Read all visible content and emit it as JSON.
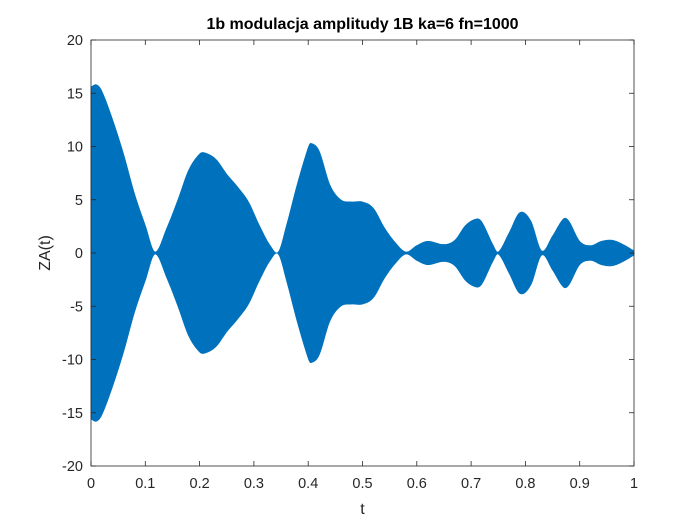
{
  "figure": {
    "background": "#ffffff",
    "axes_color": "#262626"
  },
  "chart_data": {
    "type": "area",
    "title": "1b modulacja amplitudy 1B ka=6 fn=1000",
    "xlabel": "t",
    "ylabel": "ZA(t)",
    "xlim": [
      0,
      1
    ],
    "ylim": [
      -20,
      20
    ],
    "xticks": [
      0,
      0.1,
      0.2,
      0.3,
      0.4,
      0.5,
      0.6,
      0.7,
      0.8,
      0.9,
      1
    ],
    "xtick_labels": [
      "0",
      "0.1",
      "0.2",
      "0.3",
      "0.4",
      "0.5",
      "0.6",
      "0.7",
      "0.8",
      "0.9",
      "1"
    ],
    "yticks": [
      -20,
      -15,
      -10,
      -5,
      0,
      5,
      10,
      15,
      20
    ],
    "ytick_labels": [
      "-20",
      "-15",
      "-10",
      "-5",
      "0",
      "5",
      "10",
      "15",
      "20"
    ],
    "grid": false,
    "box": true,
    "series": [
      {
        "color": "#0072BD",
        "style": "amplitude-modulated signal, symmetric envelope ±A(t)",
        "envelope_t": [
          0,
          0.01,
          0.02,
          0.04,
          0.06,
          0.08,
          0.1,
          0.118,
          0.14,
          0.16,
          0.18,
          0.2,
          0.21,
          0.23,
          0.25,
          0.27,
          0.29,
          0.31,
          0.33,
          0.345,
          0.36,
          0.38,
          0.4,
          0.405,
          0.42,
          0.44,
          0.46,
          0.48,
          0.5,
          0.52,
          0.54,
          0.56,
          0.58,
          0.6,
          0.62,
          0.65,
          0.67,
          0.69,
          0.71,
          0.72,
          0.74,
          0.75,
          0.77,
          0.79,
          0.81,
          0.83,
          0.85,
          0.87,
          0.88,
          0.9,
          0.92,
          0.94,
          0.96,
          0.98,
          1
        ],
        "envelope_a": [
          15.6,
          15.8,
          15.2,
          12.5,
          9.3,
          5.6,
          2.6,
          0.1,
          2.4,
          5.0,
          7.8,
          9.3,
          9.4,
          8.8,
          7.4,
          6.2,
          4.8,
          2.6,
          0.7,
          0.1,
          2.6,
          6.5,
          9.9,
          10.3,
          9.6,
          6.4,
          5.0,
          4.8,
          4.8,
          4.2,
          2.4,
          1.0,
          0.1,
          0.7,
          1.1,
          0.8,
          1.2,
          2.6,
          3.2,
          2.9,
          0.8,
          0.1,
          1.9,
          3.8,
          3.0,
          0.2,
          1.6,
          3.2,
          3.0,
          1.1,
          0.7,
          1.1,
          1.2,
          0.8,
          0.2
        ]
      }
    ]
  }
}
